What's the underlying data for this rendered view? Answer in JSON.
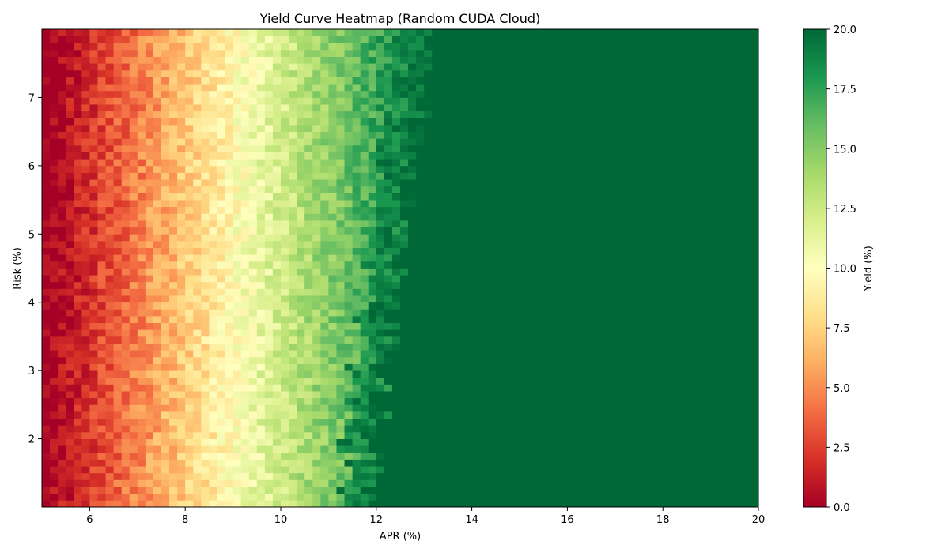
{
  "chart_data": {
    "type": "heatmap",
    "title": "Yield Curve Heatmap (Random CUDA Cloud)",
    "xlabel": "APR (%)",
    "ylabel": "Risk (%)",
    "xlim": [
      5,
      20
    ],
    "ylim": [
      1,
      8
    ],
    "x_ticks": [
      6,
      8,
      10,
      12,
      14,
      16,
      18,
      20
    ],
    "y_ticks": [
      2,
      3,
      4,
      5,
      6,
      7
    ],
    "grid": false,
    "colormap": "RdYlGn",
    "colorbar": {
      "label": "Yield (%)",
      "range": [
        0,
        20
      ],
      "ticks": [
        "0.0",
        "2.5",
        "5.0",
        "7.5",
        "10.0",
        "12.5",
        "15.0",
        "17.5",
        "20.0"
      ]
    },
    "color_stops": [
      "#a50026",
      "#d73027",
      "#f46d43",
      "#fdae61",
      "#fee08b",
      "#ffffbf",
      "#d9ef8b",
      "#a6d96a",
      "#66bd63",
      "#1a9850",
      "#006837"
    ],
    "grid_shape": {
      "x_cells": 90,
      "y_cells": 70
    },
    "yield_model": {
      "description_free": true,
      "zero_apr": 5.3,
      "slope_per_apr_pct": 2.55,
      "saturation_apr_at_low_risk": 11.8,
      "saturation_apr_at_high_risk": 13.2,
      "noise_amplitude": 1.4
    }
  }
}
